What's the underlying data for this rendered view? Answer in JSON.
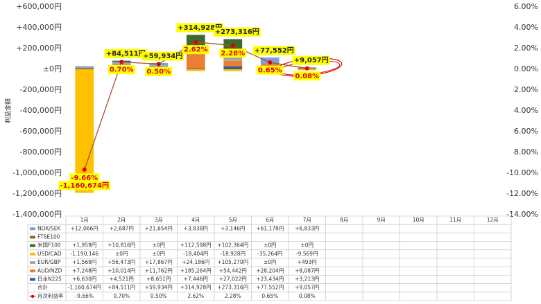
{
  "chart_data": {
    "type": "bar",
    "y_label": "利益金額",
    "categories": [
      "1月",
      "2月",
      "3月",
      "4月",
      "5月",
      "6月",
      "7月",
      "8月",
      "9月",
      "10月",
      "11月",
      "12月"
    ],
    "stacked": true,
    "series": [
      {
        "name": "NOK/SEK",
        "color": "#7f9fd4",
        "values": [
          12066,
          2687,
          21654,
          3838,
          3146,
          61178,
          6833,
          null,
          null,
          null,
          null,
          null
        ],
        "value_labels": [
          "+12,066円",
          "+2,687円",
          "+21,654円",
          "+3,838円",
          "+3,146円",
          "+61,178円",
          "+6,833円",
          null,
          null,
          null,
          null,
          null
        ]
      },
      {
        "name": "FTSE100",
        "color": "#8b6c2f",
        "values": [
          null,
          null,
          null,
          null,
          null,
          null,
          null,
          null,
          null,
          null,
          null,
          null
        ]
      },
      {
        "name": "米国F100",
        "color": "#3d6b2a",
        "values": [
          1959,
          10816,
          0,
          112598,
          102364,
          0,
          0,
          null,
          null,
          null,
          null,
          null
        ],
        "value_labels": [
          "+1,959円",
          "+10,816円",
          "±0円",
          "+112,598円",
          "+102,364円",
          "±0円",
          "±0円",
          null,
          null,
          null,
          null,
          null
        ]
      },
      {
        "name": "USD/CAD",
        "color": "#ffc000",
        "values": [
          -1190146,
          0,
          0,
          -18404,
          -18928,
          -35264,
          -9569,
          null,
          null,
          null,
          null,
          null
        ],
        "value_labels": [
          "-1,190,146",
          "±0円",
          "±0円",
          "-18,404円",
          "-18,928円",
          "-35,264円",
          "-9,569円",
          null,
          null,
          null,
          null,
          null
        ]
      },
      {
        "name": "EUR/GBP",
        "color": "#a5a5a5",
        "values": [
          1569,
          56473,
          17867,
          24186,
          105270,
          0,
          493,
          null,
          null,
          null,
          null,
          null
        ],
        "value_labels": [
          "+1,569円",
          "+56,473円",
          "+17,867円",
          "+24,186円",
          "+105,270円",
          "±0円",
          "+493円",
          null,
          null,
          null,
          null,
          null
        ]
      },
      {
        "name": "AUD/NZD",
        "color": "#ed7d31",
        "values": [
          7248,
          10014,
          11762,
          185264,
          54442,
          28204,
          8087,
          null,
          null,
          null,
          null,
          null
        ],
        "value_labels": [
          "+7,248円",
          "+10,014円",
          "+11,762円",
          "+185,264円",
          "+54,442円",
          "+28,204円",
          "+8,087円",
          null,
          null,
          null,
          null,
          null
        ]
      },
      {
        "name": "日本N225",
        "color": "#2e5fa3",
        "values": [
          6630,
          4521,
          8651,
          7446,
          27022,
          23434,
          3213,
          null,
          null,
          null,
          null,
          null
        ],
        "value_labels": [
          "+6,630円",
          "+4,521円",
          "+8,651円",
          "+7,446円",
          "+27,022円",
          "+23,434円",
          "+3,213円",
          null,
          null,
          null,
          null,
          null
        ]
      }
    ],
    "total": {
      "name": "合計",
      "values": [
        -1160674,
        84511,
        59934,
        314928,
        273316,
        77552,
        9057,
        null,
        null,
        null,
        null,
        null
      ],
      "value_labels": [
        "-1,160,674円",
        "+84,511円",
        "+59,934円",
        "+314,928円",
        "+273,316円",
        "+77,552円",
        "+9,057円",
        null,
        null,
        null,
        null,
        null
      ]
    },
    "rate": {
      "name": "月次利益率",
      "axis": "y2",
      "color": "#a0522d",
      "marker_color": "#e00000",
      "values": [
        -9.66,
        0.7,
        0.5,
        2.62,
        2.28,
        0.65,
        0.08,
        null,
        null,
        null,
        null,
        null
      ],
      "value_labels": [
        "-9.66%",
        "0.70%",
        "0.50%",
        "2.62%",
        "2.28%",
        "0.65%",
        "0.08%",
        null,
        null,
        null,
        null,
        null
      ]
    },
    "ylim": [
      -1400000,
      600000
    ],
    "yticks": [
      {
        "value": -1400000,
        "label": "-1,400,000円"
      },
      {
        "value": -1200000,
        "label": "-1,200,000円"
      },
      {
        "value": -1000000,
        "label": "-1,000,000円"
      },
      {
        "value": -800000,
        "label": "-800,000円"
      },
      {
        "value": -600000,
        "label": "-600,000円"
      },
      {
        "value": -400000,
        "label": "-400,000円"
      },
      {
        "value": -200000,
        "label": "-200,000円"
      },
      {
        "value": 0,
        "label": "±0円"
      },
      {
        "value": 200000,
        "label": "+200,000円"
      },
      {
        "value": 400000,
        "label": "+400,000円"
      },
      {
        "value": 600000,
        "label": "+600,000円"
      }
    ],
    "y2lim": [
      -14,
      6
    ],
    "y2ticks": [
      {
        "value": -14,
        "label": "-14.00%"
      },
      {
        "value": -12,
        "label": "-12.00%"
      },
      {
        "value": -10,
        "label": "-10.00%"
      },
      {
        "value": -8,
        "label": "-8.00%"
      },
      {
        "value": -6,
        "label": "-6.00%"
      },
      {
        "value": -4,
        "label": "-4.00%"
      },
      {
        "value": -2,
        "label": "-2.00%"
      },
      {
        "value": 0,
        "label": "0.00%"
      },
      {
        "value": 2,
        "label": "2.00%"
      },
      {
        "value": 4,
        "label": "4.00%"
      },
      {
        "value": 6,
        "label": "6.00%"
      }
    ],
    "label_bg": "#ffff00"
  }
}
